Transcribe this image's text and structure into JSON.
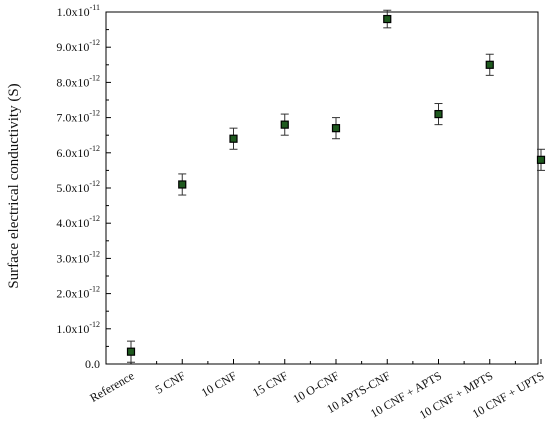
{
  "chart_data": {
    "type": "scatter",
    "title": "",
    "xlabel": "",
    "ylabel": "Surface electrical conductivity (S)",
    "categories": [
      "Reference",
      "5 CNF",
      "10 CNF",
      "15 CNF",
      "10 O-CNF",
      "10 APTS-CNF",
      "10 CNF + APTS",
      "10 CNF + MPTS",
      "10 CNF + UPTS"
    ],
    "series": [
      {
        "values": [
          3.5e-13,
          5.1e-12,
          6.4e-12,
          6.8e-12,
          6.7e-12,
          9.8e-12,
          7.1e-12,
          8.5e-12,
          5.8e-12
        ],
        "errors": [
          3e-13,
          3e-13,
          3e-13,
          3e-13,
          3e-13,
          2.5e-13,
          3e-13,
          3e-13,
          3e-13
        ]
      }
    ],
    "ylim": [
      0,
      1e-11
    ],
    "yticks": [
      {
        "value": 0,
        "mant": "0.0",
        "exp": ""
      },
      {
        "value": 1e-12,
        "mant": "1.0x10",
        "exp": "-12"
      },
      {
        "value": 2e-12,
        "mant": "2.0x10",
        "exp": "-12"
      },
      {
        "value": 3e-12,
        "mant": "3.0x10",
        "exp": "-12"
      },
      {
        "value": 4e-12,
        "mant": "4.0x10",
        "exp": "-12"
      },
      {
        "value": 5e-12,
        "mant": "5.0x10",
        "exp": "-12"
      },
      {
        "value": 6e-12,
        "mant": "6.0x10",
        "exp": "-12"
      },
      {
        "value": 7e-12,
        "mant": "7.0x10",
        "exp": "-12"
      },
      {
        "value": 8e-12,
        "mant": "8.0x10",
        "exp": "-12"
      },
      {
        "value": 9e-12,
        "mant": "9.0x10",
        "exp": "-12"
      },
      {
        "value": 1e-11,
        "mant": "1.0x10",
        "exp": "-11"
      }
    ],
    "grid": false,
    "legend": "none",
    "colors": {
      "marker_fill": "#1f5a1f",
      "marker_edge": "#000000",
      "error_bar": "#333333",
      "axis": "#000000"
    }
  }
}
